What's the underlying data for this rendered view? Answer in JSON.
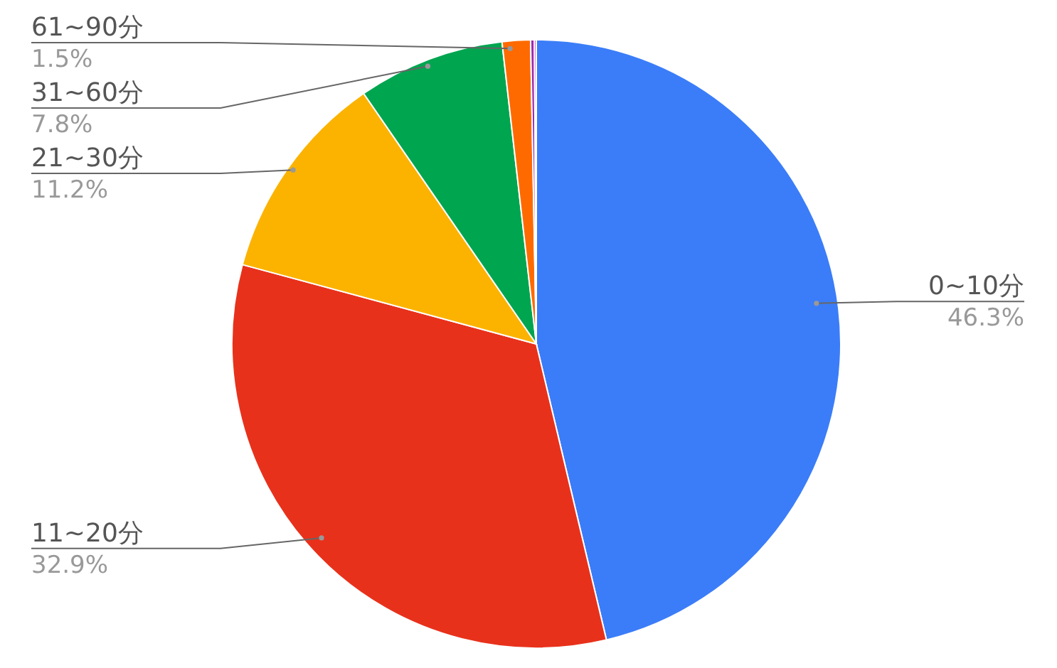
{
  "chart_data": {
    "type": "pie",
    "categories": [
      "0~10分",
      "11~20分",
      "21~30分",
      "31~60分",
      "61~90分",
      null,
      null
    ],
    "values": [
      46.3,
      32.9,
      11.2,
      7.8,
      1.5,
      0.2,
      0.1
    ],
    "colors": [
      "#3b7df8",
      "#e8311b",
      "#fbb300",
      "#00a550",
      "#ff6a00",
      "#9c27b0",
      "#e91e8c"
    ],
    "value_labels": [
      "46.3%",
      "32.9%",
      "11.2%",
      "7.8%",
      "1.5%",
      null,
      null
    ],
    "legend": false
  }
}
